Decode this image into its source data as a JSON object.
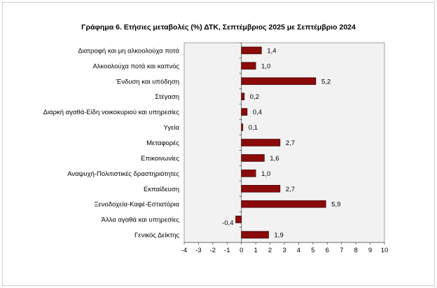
{
  "chart_data": {
    "type": "bar",
    "orientation": "horizontal",
    "title": "Γράφημα 6. Ετήσιες μεταβολές (%) ΔΤΚ, Σεπτέμβριος 2025 με Σεπτέμβριο 2024",
    "categories": [
      "Διατροφή και μη αλκοολούχα ποτά",
      "Αλκοολούχα ποτά και καπνός",
      "Ένδυση και υπόδηση",
      "Στέγαση",
      "Διαρκή αγαθά-Είδη νοικοκυριού και υπηρεσίες",
      "Υγεία",
      "Μεταφορές",
      "Επικοινωνίες",
      "Αναψυχή-Πολιτιστικές δραστηριότητες",
      "Εκπαίδευση",
      "Ξενοδοχεία-Καφέ-Εστιατόρια",
      "Άλλα αγαθά και υπηρεσίες",
      "Γενικός Δείκτης"
    ],
    "values": [
      1.4,
      1.0,
      5.2,
      0.2,
      0.4,
      0.1,
      2.7,
      1.6,
      1.0,
      2.7,
      5.9,
      -0.4,
      1.9
    ],
    "value_labels": [
      "1,4",
      "1,0",
      "5,2",
      "0,2",
      "0,4",
      "0,1",
      "2,7",
      "1,6",
      "1,0",
      "2,7",
      "5,9",
      "-0,4",
      "1,9"
    ],
    "xlim": [
      -4,
      10
    ],
    "xticks": [
      "-4",
      "-3",
      "-2",
      "-1",
      "0",
      "1",
      "2",
      "3",
      "4",
      "5",
      "6",
      "7",
      "8",
      "9",
      "10"
    ],
    "bar_color": "#8b0a0a",
    "plot_background": "#f2f2f2",
    "grid": false,
    "legend": "none"
  }
}
